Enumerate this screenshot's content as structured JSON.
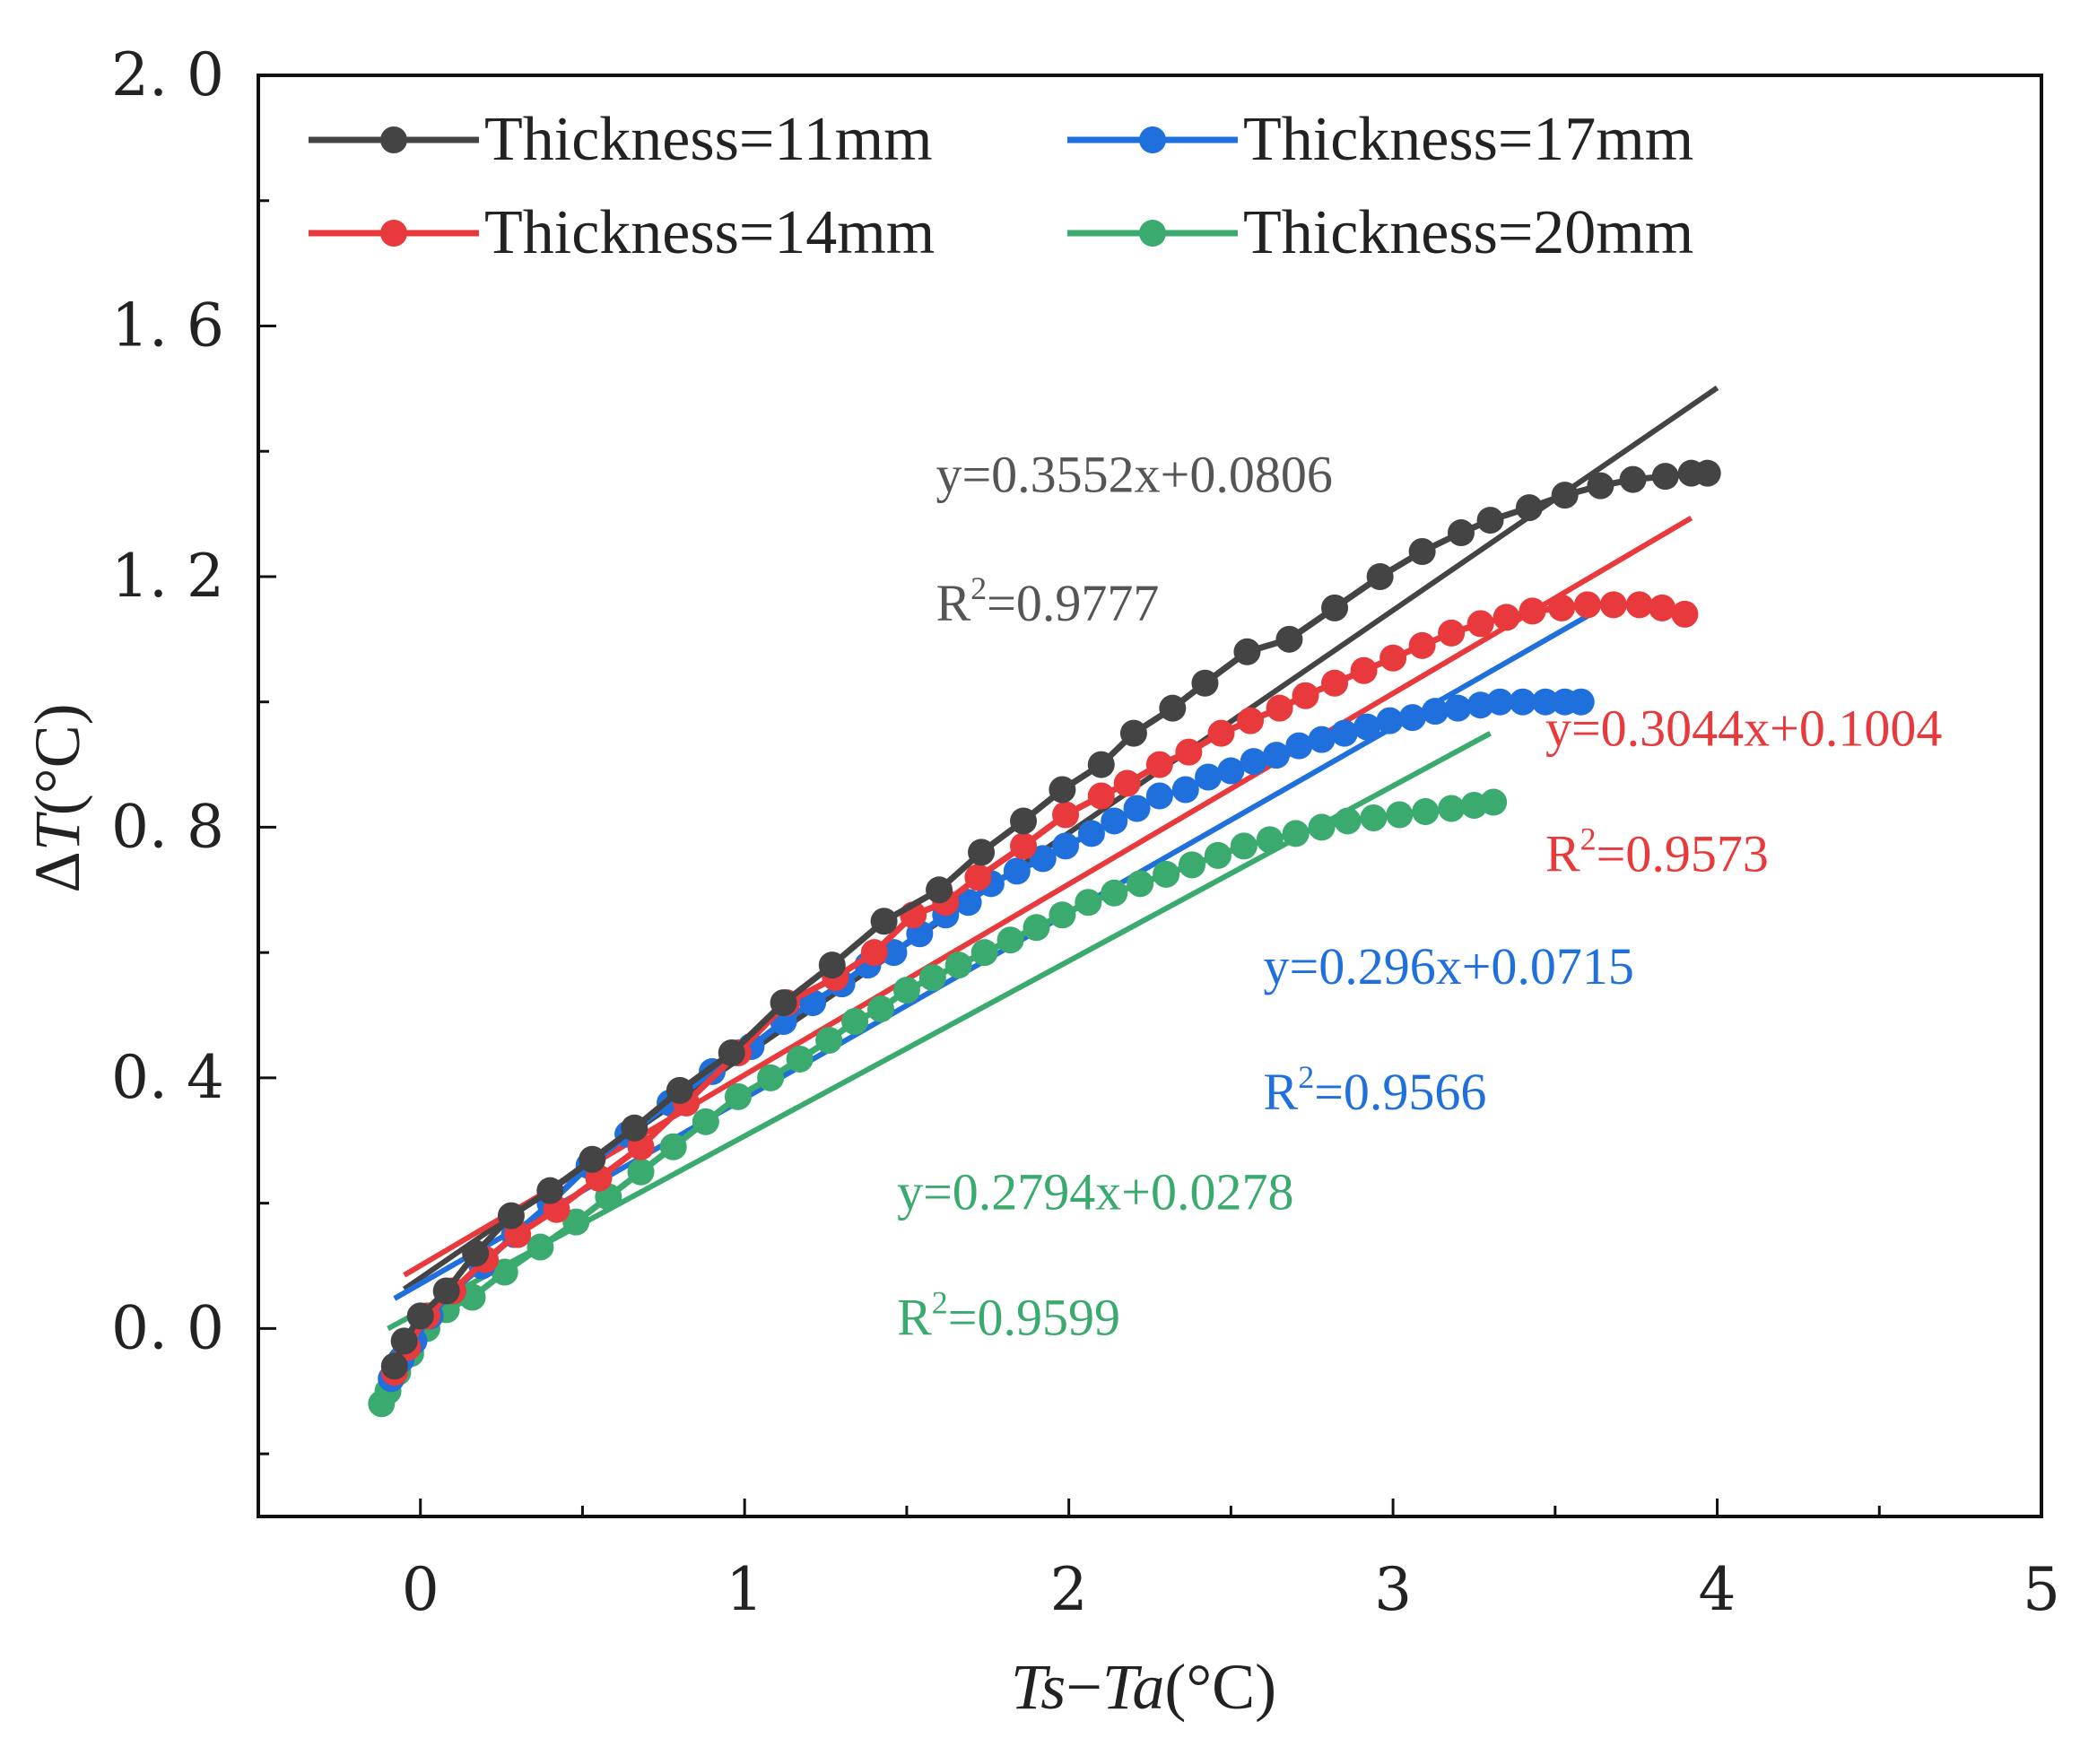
{
  "chart_data": {
    "type": "scatter",
    "xlabel": "Ts−Ta(°C)",
    "xlabel_parts": {
      "a": "Ts",
      "op": "−",
      "b": "Ta",
      "unit": "(°C)"
    },
    "ylabel": "ΔT(°C)",
    "ylabel_parts": {
      "delta": "Δ",
      "var": "T",
      "unit": "(°C)"
    },
    "xlim": [
      -0.5,
      5
    ],
    "ylim": [
      -0.3,
      2.0
    ],
    "x_ticks": [
      0,
      1,
      2,
      3,
      4,
      5
    ],
    "x_tick_labels": [
      "0",
      "1",
      "2",
      "3",
      "4",
      "5"
    ],
    "y_ticks": [
      0.0,
      0.4,
      0.8,
      1.2,
      1.6,
      2.0
    ],
    "y_tick_labels": [
      "0. 0",
      "0. 4",
      "0. 8",
      "1. 2",
      "1. 6",
      "2. 0"
    ],
    "grid": false,
    "legend_position": "top-left",
    "series": [
      {
        "name": "Thickness=11mm",
        "color": "#444444",
        "marker": "circle",
        "fit": {
          "slope": 0.3552,
          "intercept": 0.0806,
          "x_range": [
            -0.05,
            4.0
          ]
        },
        "equation": "y=0.3552x+0.0806",
        "r2": {
          "prefix": "R",
          "sup": "2",
          "value": "=0.9777"
        },
        "x": [
          -0.08,
          -0.05,
          0.0,
          0.08,
          0.17,
          0.28,
          0.4,
          0.53,
          0.66,
          0.8,
          0.96,
          1.12,
          1.27,
          1.43,
          1.6,
          1.73,
          1.86,
          1.98,
          2.1,
          2.2,
          2.32,
          2.42,
          2.55,
          2.68,
          2.82,
          2.96,
          3.09,
          3.21,
          3.3,
          3.42,
          3.53,
          3.64,
          3.74,
          3.84,
          3.92,
          3.97
        ],
        "y": [
          -0.06,
          -0.02,
          0.02,
          0.06,
          0.12,
          0.18,
          0.22,
          0.27,
          0.32,
          0.38,
          0.44,
          0.52,
          0.58,
          0.65,
          0.7,
          0.76,
          0.81,
          0.86,
          0.9,
          0.95,
          0.99,
          1.03,
          1.08,
          1.1,
          1.15,
          1.2,
          1.24,
          1.27,
          1.29,
          1.31,
          1.33,
          1.345,
          1.355,
          1.36,
          1.365,
          1.365
        ]
      },
      {
        "name": "Thickness=14mm",
        "color": "#e8393c",
        "marker": "circle",
        "fit": {
          "slope": 0.3044,
          "intercept": 0.1004,
          "x_range": [
            -0.05,
            3.92
          ]
        },
        "equation": "y=0.3044x+0.1004",
        "r2": {
          "prefix": "R",
          "sup": "2",
          "value": "=0.9573"
        },
        "x": [
          -0.08,
          -0.04,
          0.02,
          0.1,
          0.2,
          0.3,
          0.42,
          0.55,
          0.68,
          0.82,
          0.98,
          1.13,
          1.28,
          1.4,
          1.52,
          1.62,
          1.72,
          1.86,
          1.99,
          2.1,
          2.18,
          2.28,
          2.37,
          2.47,
          2.56,
          2.65,
          2.73,
          2.82,
          2.91,
          3.0,
          3.09,
          3.18,
          3.27,
          3.35,
          3.43,
          3.52,
          3.6,
          3.68,
          3.76,
          3.83,
          3.9
        ],
        "y": [
          -0.07,
          -0.03,
          0.02,
          0.06,
          0.11,
          0.15,
          0.19,
          0.24,
          0.29,
          0.36,
          0.44,
          0.52,
          0.56,
          0.6,
          0.66,
          0.68,
          0.72,
          0.77,
          0.82,
          0.85,
          0.87,
          0.9,
          0.92,
          0.95,
          0.97,
          0.99,
          1.01,
          1.03,
          1.05,
          1.07,
          1.09,
          1.11,
          1.125,
          1.135,
          1.145,
          1.15,
          1.155,
          1.155,
          1.155,
          1.15,
          1.14
        ]
      },
      {
        "name": "Thickness=17mm",
        "color": "#1f6fdc",
        "marker": "circle",
        "fit": {
          "slope": 0.296,
          "intercept": 0.0715,
          "x_range": [
            -0.08,
            3.6
          ]
        },
        "equation": "y=0.296x+0.0715",
        "r2": {
          "prefix": "R",
          "sup": "2",
          "value": "=0.9566"
        },
        "x": [
          -0.09,
          -0.06,
          -0.02,
          0.03,
          0.1,
          0.19,
          0.29,
          0.4,
          0.52,
          0.64,
          0.77,
          0.9,
          1.02,
          1.12,
          1.21,
          1.3,
          1.38,
          1.46,
          1.54,
          1.62,
          1.69,
          1.76,
          1.84,
          1.92,
          1.99,
          2.07,
          2.14,
          2.21,
          2.28,
          2.36,
          2.43,
          2.5,
          2.57,
          2.64,
          2.71,
          2.78,
          2.85,
          2.92,
          2.99,
          3.06,
          3.13,
          3.2,
          3.27,
          3.33,
          3.4,
          3.47,
          3.53,
          3.58
        ],
        "y": [
          -0.08,
          -0.05,
          -0.02,
          0.02,
          0.06,
          0.1,
          0.15,
          0.2,
          0.26,
          0.31,
          0.36,
          0.41,
          0.45,
          0.49,
          0.52,
          0.55,
          0.58,
          0.6,
          0.63,
          0.66,
          0.68,
          0.71,
          0.73,
          0.75,
          0.77,
          0.79,
          0.81,
          0.83,
          0.85,
          0.86,
          0.88,
          0.89,
          0.905,
          0.915,
          0.93,
          0.94,
          0.95,
          0.96,
          0.97,
          0.975,
          0.985,
          0.99,
          0.995,
          1.0,
          1.0,
          1.0,
          1.0,
          1.0
        ]
      },
      {
        "name": "Thickness=20mm",
        "color": "#3aaa6e",
        "marker": "circle",
        "fit": {
          "slope": 0.2794,
          "intercept": 0.0278,
          "x_range": [
            -0.1,
            3.3
          ]
        },
        "equation": "y=0.2794x+0.0278",
        "r2": {
          "prefix": "R",
          "sup": "2",
          "value": "=0.9599"
        },
        "x": [
          -0.12,
          -0.1,
          -0.07,
          -0.03,
          0.02,
          0.08,
          0.16,
          0.26,
          0.37,
          0.48,
          0.58,
          0.68,
          0.78,
          0.88,
          0.98,
          1.08,
          1.17,
          1.26,
          1.34,
          1.42,
          1.5,
          1.58,
          1.66,
          1.74,
          1.82,
          1.9,
          1.98,
          2.06,
          2.14,
          2.22,
          2.3,
          2.38,
          2.46,
          2.54,
          2.62,
          2.7,
          2.78,
          2.86,
          2.94,
          3.02,
          3.1,
          3.18,
          3.25,
          3.31
        ],
        "y": [
          -0.12,
          -0.1,
          -0.07,
          -0.04,
          0.0,
          0.03,
          0.05,
          0.09,
          0.13,
          0.17,
          0.21,
          0.25,
          0.29,
          0.33,
          0.37,
          0.4,
          0.43,
          0.46,
          0.49,
          0.51,
          0.54,
          0.56,
          0.58,
          0.6,
          0.62,
          0.64,
          0.66,
          0.68,
          0.695,
          0.71,
          0.725,
          0.74,
          0.755,
          0.77,
          0.78,
          0.79,
          0.8,
          0.81,
          0.815,
          0.82,
          0.825,
          0.83,
          0.835,
          0.84
        ]
      }
    ],
    "annotations": [
      {
        "series": 0,
        "eq_at": [
          1.59,
          1.335
        ],
        "r2_at": [
          1.59,
          1.13
        ],
        "color": "#555555"
      },
      {
        "series": 1,
        "eq_at": [
          3.47,
          0.93
        ],
        "r2_at": [
          3.47,
          0.73
        ],
        "color": "#e8393c"
      },
      {
        "series": 2,
        "eq_at": [
          2.6,
          0.55
        ],
        "r2_at": [
          2.6,
          0.35
        ],
        "color": "#1f6fdc"
      },
      {
        "series": 3,
        "eq_at": [
          1.47,
          0.19
        ],
        "r2_at": [
          1.47,
          -0.01
        ],
        "color": "#3aaa6e"
      }
    ]
  }
}
